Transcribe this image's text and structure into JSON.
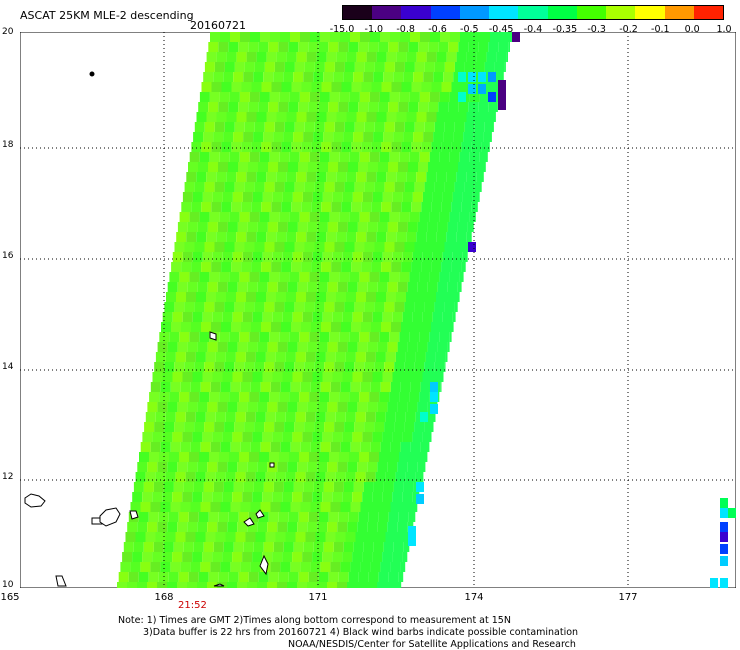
{
  "header": {
    "title": "ASCAT 25KM MLE-2 descending",
    "date": "20160721"
  },
  "colorbar": {
    "labels": [
      "-15.0",
      "-1.0",
      "-0.8",
      "-0.6",
      "-0.5",
      "-0.45",
      "-0.4",
      "-0.35",
      "-0.3",
      "-0.2",
      "-0.1",
      "0.0",
      "1.0"
    ],
    "colors": [
      "#1a001a",
      "#4b0082",
      "#3a00d0",
      "#0040ff",
      "#0099ff",
      "#00e5ff",
      "#00ff99",
      "#00ff44",
      "#44ff00",
      "#aaff00",
      "#ffff00",
      "#ff9900",
      "#ff2200"
    ]
  },
  "axes": {
    "y_ticks": [
      "20",
      "18",
      "16",
      "14",
      "12",
      "10"
    ],
    "x_ticks": [
      "165",
      "168",
      "171",
      "174",
      "177"
    ]
  },
  "pass_time": "21:52",
  "notes": {
    "line1": "Note: 1) Times are GMT 2)Times along bottom correspond to measurement at 15N",
    "line2": "3)Data buffer is 22 hrs from 20160721 4) Black wind barbs indicate possible contamination",
    "line3": "NOAA/NESDIS/Center for Satellite Applications and Research"
  }
}
